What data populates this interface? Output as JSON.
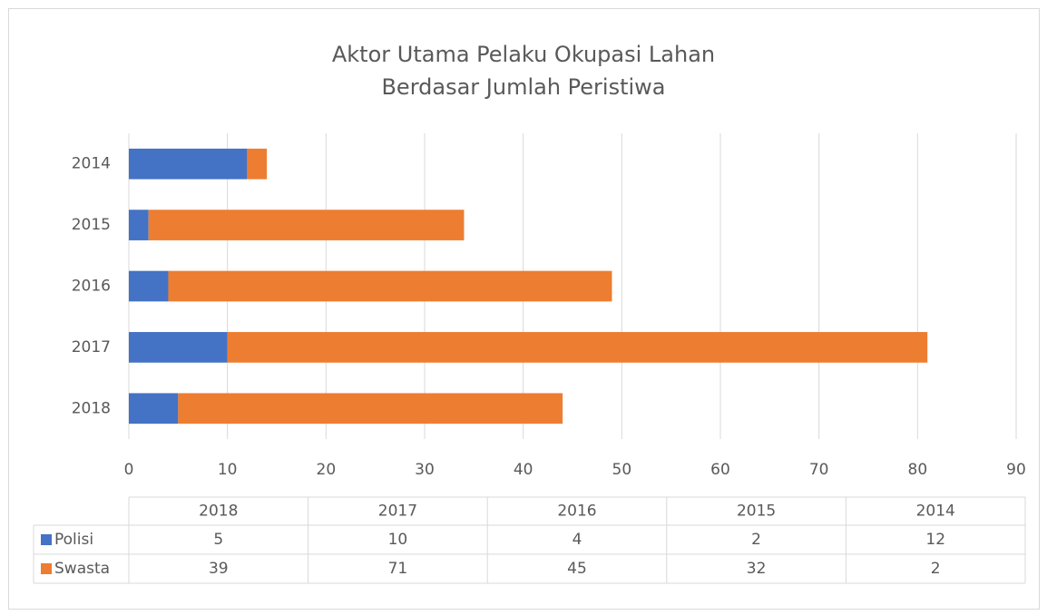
{
  "chart_data": {
    "type": "stacked-bar-horizontal",
    "title": "Aktor Utama Pelaku Okupasi Lahan\nBerdasar Jumlah Peristiwa",
    "categories": [
      "2018",
      "2017",
      "2016",
      "2015",
      "2014"
    ],
    "series": [
      {
        "name": "Polisi",
        "color": "#4472c4",
        "values": [
          5,
          10,
          4,
          2,
          12
        ]
      },
      {
        "name": "Swasta",
        "color": "#ed7d31",
        "values": [
          39,
          71,
          45,
          32,
          2
        ]
      }
    ],
    "xlim": [
      0,
      90
    ],
    "xticks": [
      0,
      10,
      20,
      30,
      40,
      50,
      60,
      70,
      80,
      90
    ],
    "grid": true,
    "data_table": true
  }
}
